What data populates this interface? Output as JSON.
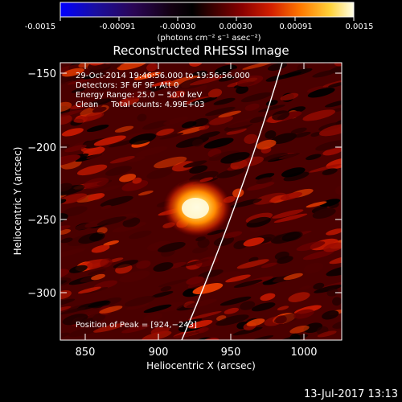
{
  "colorbar": {
    "tick_labels": [
      "-0.0015",
      "-0.00091",
      "-0.00030",
      "0.00030",
      "0.00091",
      "0.0015"
    ],
    "units_label": "(photons cm⁻² s⁻¹ asec⁻²)"
  },
  "plot": {
    "title": "Reconstructed RHESSI Image",
    "xlabel": "Heliocentric X (arcsec)",
    "ylabel": "Heliocentric Y (arcsec)",
    "x_ticks": [
      "850",
      "900",
      "950",
      "1000"
    ],
    "y_ticks": [
      "−150",
      "−200",
      "−250",
      "−300"
    ],
    "annotation_lines": [
      "29-Oct-2014 19:46:56.000 to 19:56:56.000",
      "Detectors: 3F 6F 9F, Att 0",
      "Energy Range: 25.0 − 50.0 keV",
      "Clean     Total counts: 4.99E+03"
    ],
    "peak_label": "Position of Peak = [924,−243]"
  },
  "footer": {
    "timestamp": "13-Jul-2017 13:13"
  },
  "colors": {
    "background": "#000000",
    "limb": "#ffffff"
  }
}
